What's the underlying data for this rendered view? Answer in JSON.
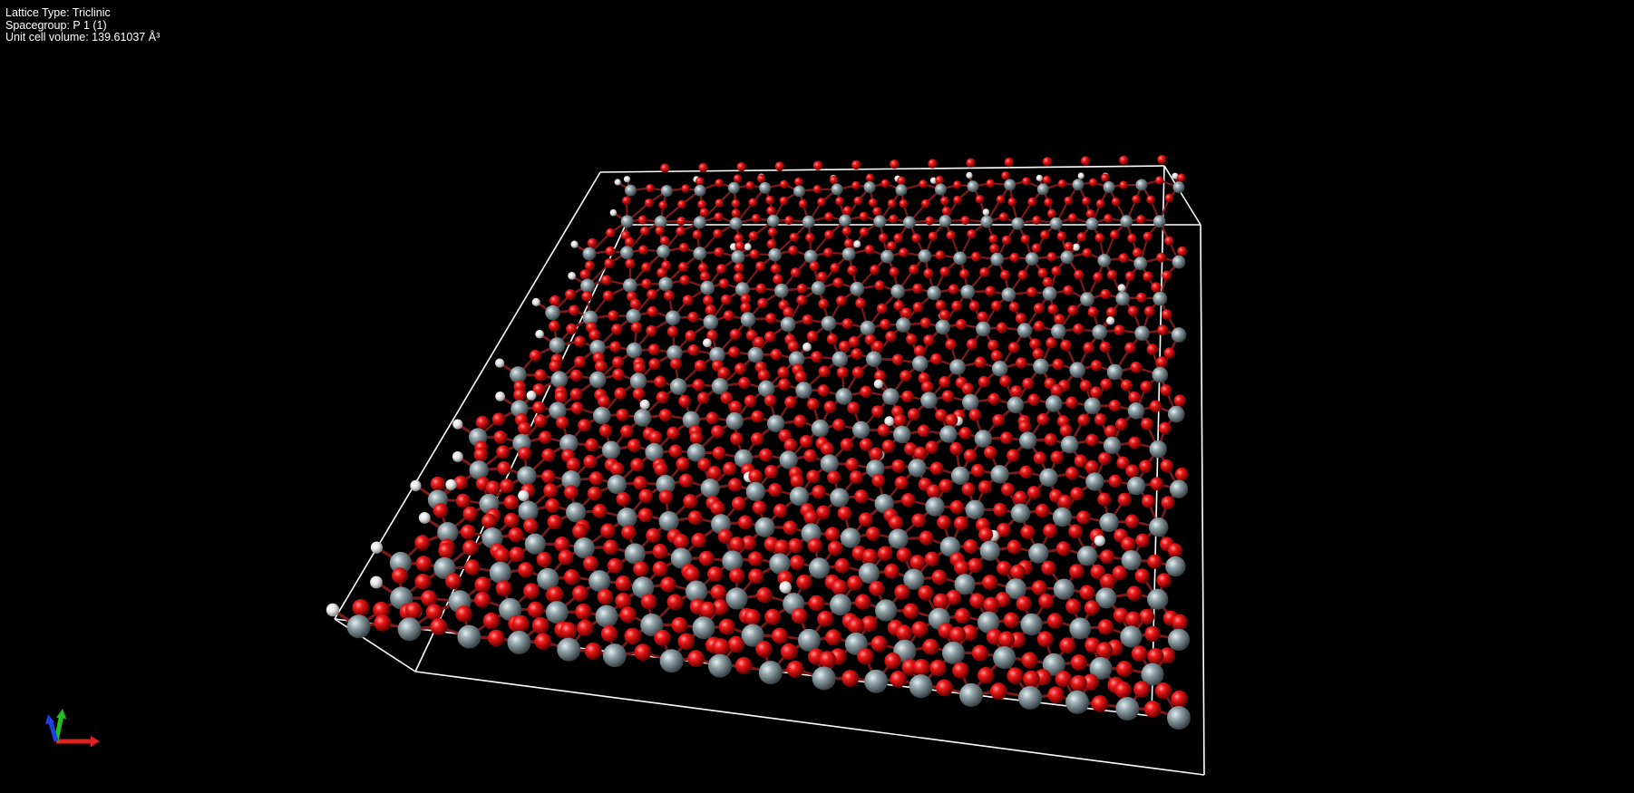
{
  "info": {
    "lattice_type": "Lattice Type: Triclinic",
    "spacegroup": "Spacegroup: P 1 (1)",
    "unit_cell_volume": "Unit cell volume: 139.61037 Å³"
  },
  "colors": {
    "background": "#000000",
    "oxygen": "#e00000",
    "silicon": "#8a9aa0",
    "hydrogen": "#f0f0f0",
    "cell_edge": "#ffffff",
    "axis_x": "#e02020",
    "axis_y": "#20c020",
    "axis_z": "#2040e0"
  },
  "icons": {
    "axis_triad": "xyz-axes-icon"
  }
}
